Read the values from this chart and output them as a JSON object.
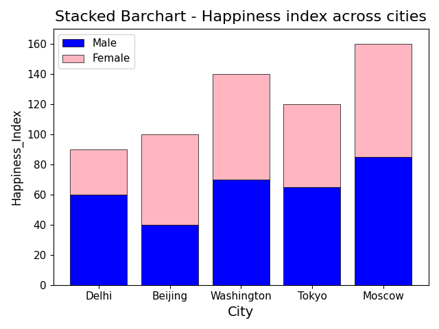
{
  "title": "Stacked Barchart - Happiness index across cities",
  "xlabel": "City",
  "ylabel": "Happiness_Index",
  "categories": [
    "Delhi",
    "Beijing",
    "Washington",
    "Tokyo",
    "Moscow"
  ],
  "male_values": [
    60,
    40,
    70,
    65,
    85
  ],
  "female_values": [
    30,
    60,
    70,
    55,
    75
  ],
  "male_color": "blue",
  "female_color": "lightpink",
  "male_label": "Male",
  "female_label": "Female",
  "ylim": [
    0,
    170
  ],
  "title_fontsize": 16,
  "xlabel_fontsize": 14,
  "ylabel_fontsize": 12,
  "tick_fontsize": 11,
  "legend_fontsize": 11,
  "bar_edgecolor": "black",
  "bar_linewidth": 0.5,
  "figsize": [
    6.4,
    4.8
  ],
  "dpi": 100
}
